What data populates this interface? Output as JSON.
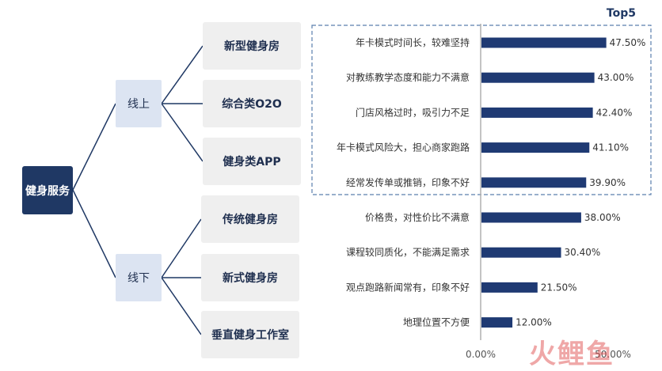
{
  "tree": {
    "root": "健身服务",
    "online": {
      "label": "线上",
      "children": [
        "新型健身房",
        "综合类O2O",
        "健身类APP"
      ]
    },
    "offline": {
      "label": "线下",
      "children": [
        "传统健身房",
        "新式健身房",
        "垂直健身工作室"
      ]
    }
  },
  "watermark": "火鲤鱼",
  "chart_data": {
    "type": "bar",
    "orientation": "horizontal",
    "title": "Top5",
    "categories": [
      "年卡模式时间长，较难坚持",
      "对教练教学态度和能力不满意",
      "门店风格过时，吸引力不足",
      "年卡模式风险大，担心商家跑路",
      "经常发传单或推销，印象不好",
      "价格贵，对性价比不满意",
      "课程较同质化，不能满足需求",
      "观点跑路新闻常有，印象不好",
      "地理位置不方便"
    ],
    "values": [
      47.5,
      43.0,
      42.4,
      41.1,
      39.9,
      38.0,
      30.4,
      21.5,
      12.0
    ],
    "value_labels": [
      "47.50%",
      "43.00%",
      "42.40%",
      "41.10%",
      "39.90%",
      "38.00%",
      "30.40%",
      "21.50%",
      "12.00%"
    ],
    "xlim": [
      0,
      50
    ],
    "x_ticks": [
      0,
      50
    ],
    "x_tick_labels": [
      "0.00%",
      "50.00%"
    ],
    "highlight_top_n": 5,
    "bar_color": "#1f3a73",
    "grid": false
  }
}
